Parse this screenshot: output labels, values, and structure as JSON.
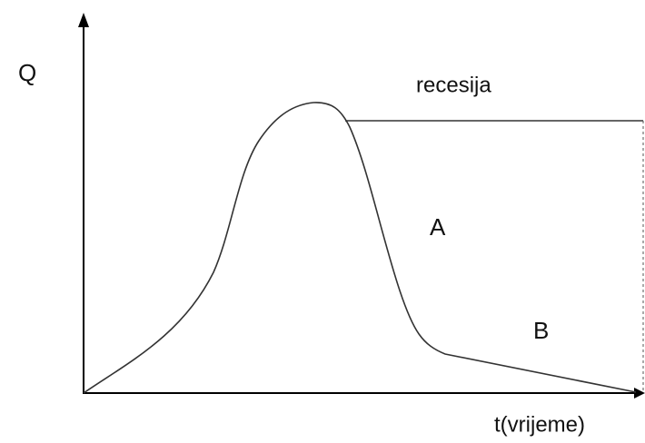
{
  "y_axis_label": "Q",
  "x_axis_label": "t(vrijeme)",
  "annotations": {
    "recession": "recesija",
    "region_a": "A",
    "region_b": "B"
  }
}
